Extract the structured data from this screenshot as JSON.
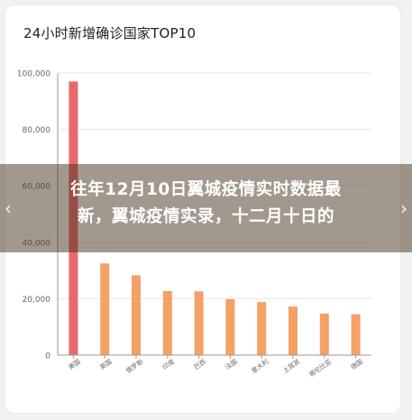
{
  "article": {
    "headline_line1": "往年12月10日翼城疫情实时数据最",
    "headline_line2": "新，翼城疫情实录，十二月十日的"
  },
  "nav": {
    "prev_icon": "chevron-left-icon",
    "next_icon": "chevron-right-icon"
  },
  "colors": {
    "highlight_bar": "#e8696b",
    "bar": "#f5a066",
    "axis": "#999999",
    "grid": "#e6e6e6",
    "tick_text": "#666666"
  },
  "chart_data": {
    "type": "bar",
    "title": "24小时新增确诊国家TOP10",
    "xlabel": "",
    "ylabel": "",
    "categories": [
      "美国",
      "英国",
      "俄罗斯",
      "印度",
      "巴西",
      "法国",
      "意大利",
      "土耳其",
      "哥伦比亚",
      "德国"
    ],
    "values": [
      97000,
      32500,
      28300,
      22700,
      22600,
      19800,
      18800,
      17200,
      14700,
      14500
    ],
    "highlight_index": 0,
    "ylim": [
      0,
      100000
    ],
    "yticks": [
      0,
      20000,
      40000,
      60000,
      80000,
      100000
    ],
    "ytick_labels": [
      "0",
      "20,000",
      "40,000",
      "60,000",
      "80,000",
      "100,000"
    ],
    "grid": true,
    "legend": "none"
  }
}
